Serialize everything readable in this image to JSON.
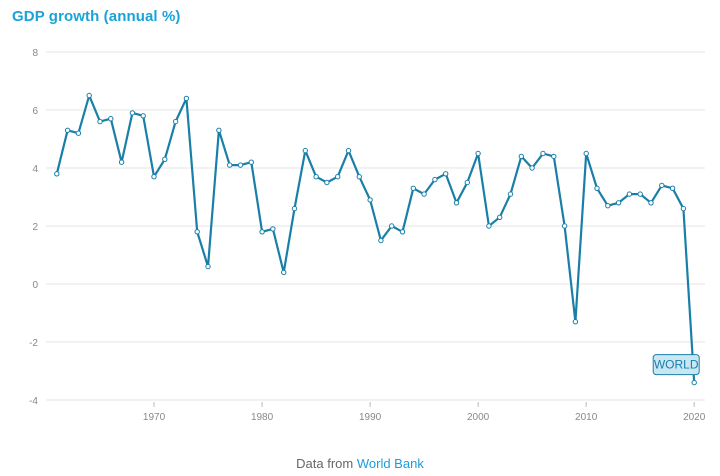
{
  "title": "GDP growth (annual %)",
  "footer": {
    "prefix": "Data from",
    "source_link": "World Bank"
  },
  "colors": {
    "title": "#1aa3d9",
    "line": "#1a7fa8",
    "grid": "#e6e6e6",
    "label_bg": "#c9e7f3",
    "label_border": "#1a7fa8",
    "link": "#1a9ddb"
  },
  "chart_data": {
    "type": "line",
    "title": "GDP growth (annual %)",
    "xlabel": "",
    "ylabel": "",
    "xlim": [
      1960,
      2021
    ],
    "ylim": [
      -4,
      8
    ],
    "yticks": [
      -4,
      -2,
      0,
      2,
      4,
      6,
      8
    ],
    "xticks": [
      1970,
      1980,
      1990,
      2000,
      2010,
      2020
    ],
    "grid": true,
    "series": [
      {
        "name": "WORLD",
        "x": [
          1961,
          1962,
          1963,
          1964,
          1965,
          1966,
          1967,
          1968,
          1969,
          1970,
          1971,
          1972,
          1973,
          1974,
          1975,
          1976,
          1977,
          1978,
          1979,
          1980,
          1981,
          1982,
          1983,
          1984,
          1985,
          1986,
          1987,
          1988,
          1989,
          1990,
          1991,
          1992,
          1993,
          1994,
          1995,
          1996,
          1997,
          1998,
          1999,
          2000,
          2001,
          2002,
          2003,
          2004,
          2005,
          2006,
          2007,
          2008,
          2009,
          2010,
          2011,
          2012,
          2013,
          2014,
          2015,
          2016,
          2017,
          2018,
          2019,
          2020
        ],
        "values": [
          3.8,
          5.3,
          5.2,
          6.5,
          5.6,
          5.7,
          4.2,
          5.9,
          5.8,
          3.7,
          4.3,
          5.6,
          6.4,
          1.8,
          0.6,
          5.3,
          4.1,
          4.1,
          4.2,
          1.8,
          1.9,
          0.4,
          2.6,
          4.6,
          3.7,
          3.5,
          3.7,
          4.6,
          3.7,
          2.9,
          1.5,
          2.0,
          1.8,
          3.3,
          3.1,
          3.6,
          3.8,
          2.8,
          3.5,
          4.5,
          2.0,
          2.3,
          3.1,
          4.4,
          4.0,
          4.5,
          4.4,
          2.0,
          -1.3,
          4.5,
          3.3,
          2.7,
          2.8,
          3.1,
          3.1,
          2.8,
          3.4,
          3.3,
          2.6,
          -3.4
        ]
      }
    ]
  }
}
